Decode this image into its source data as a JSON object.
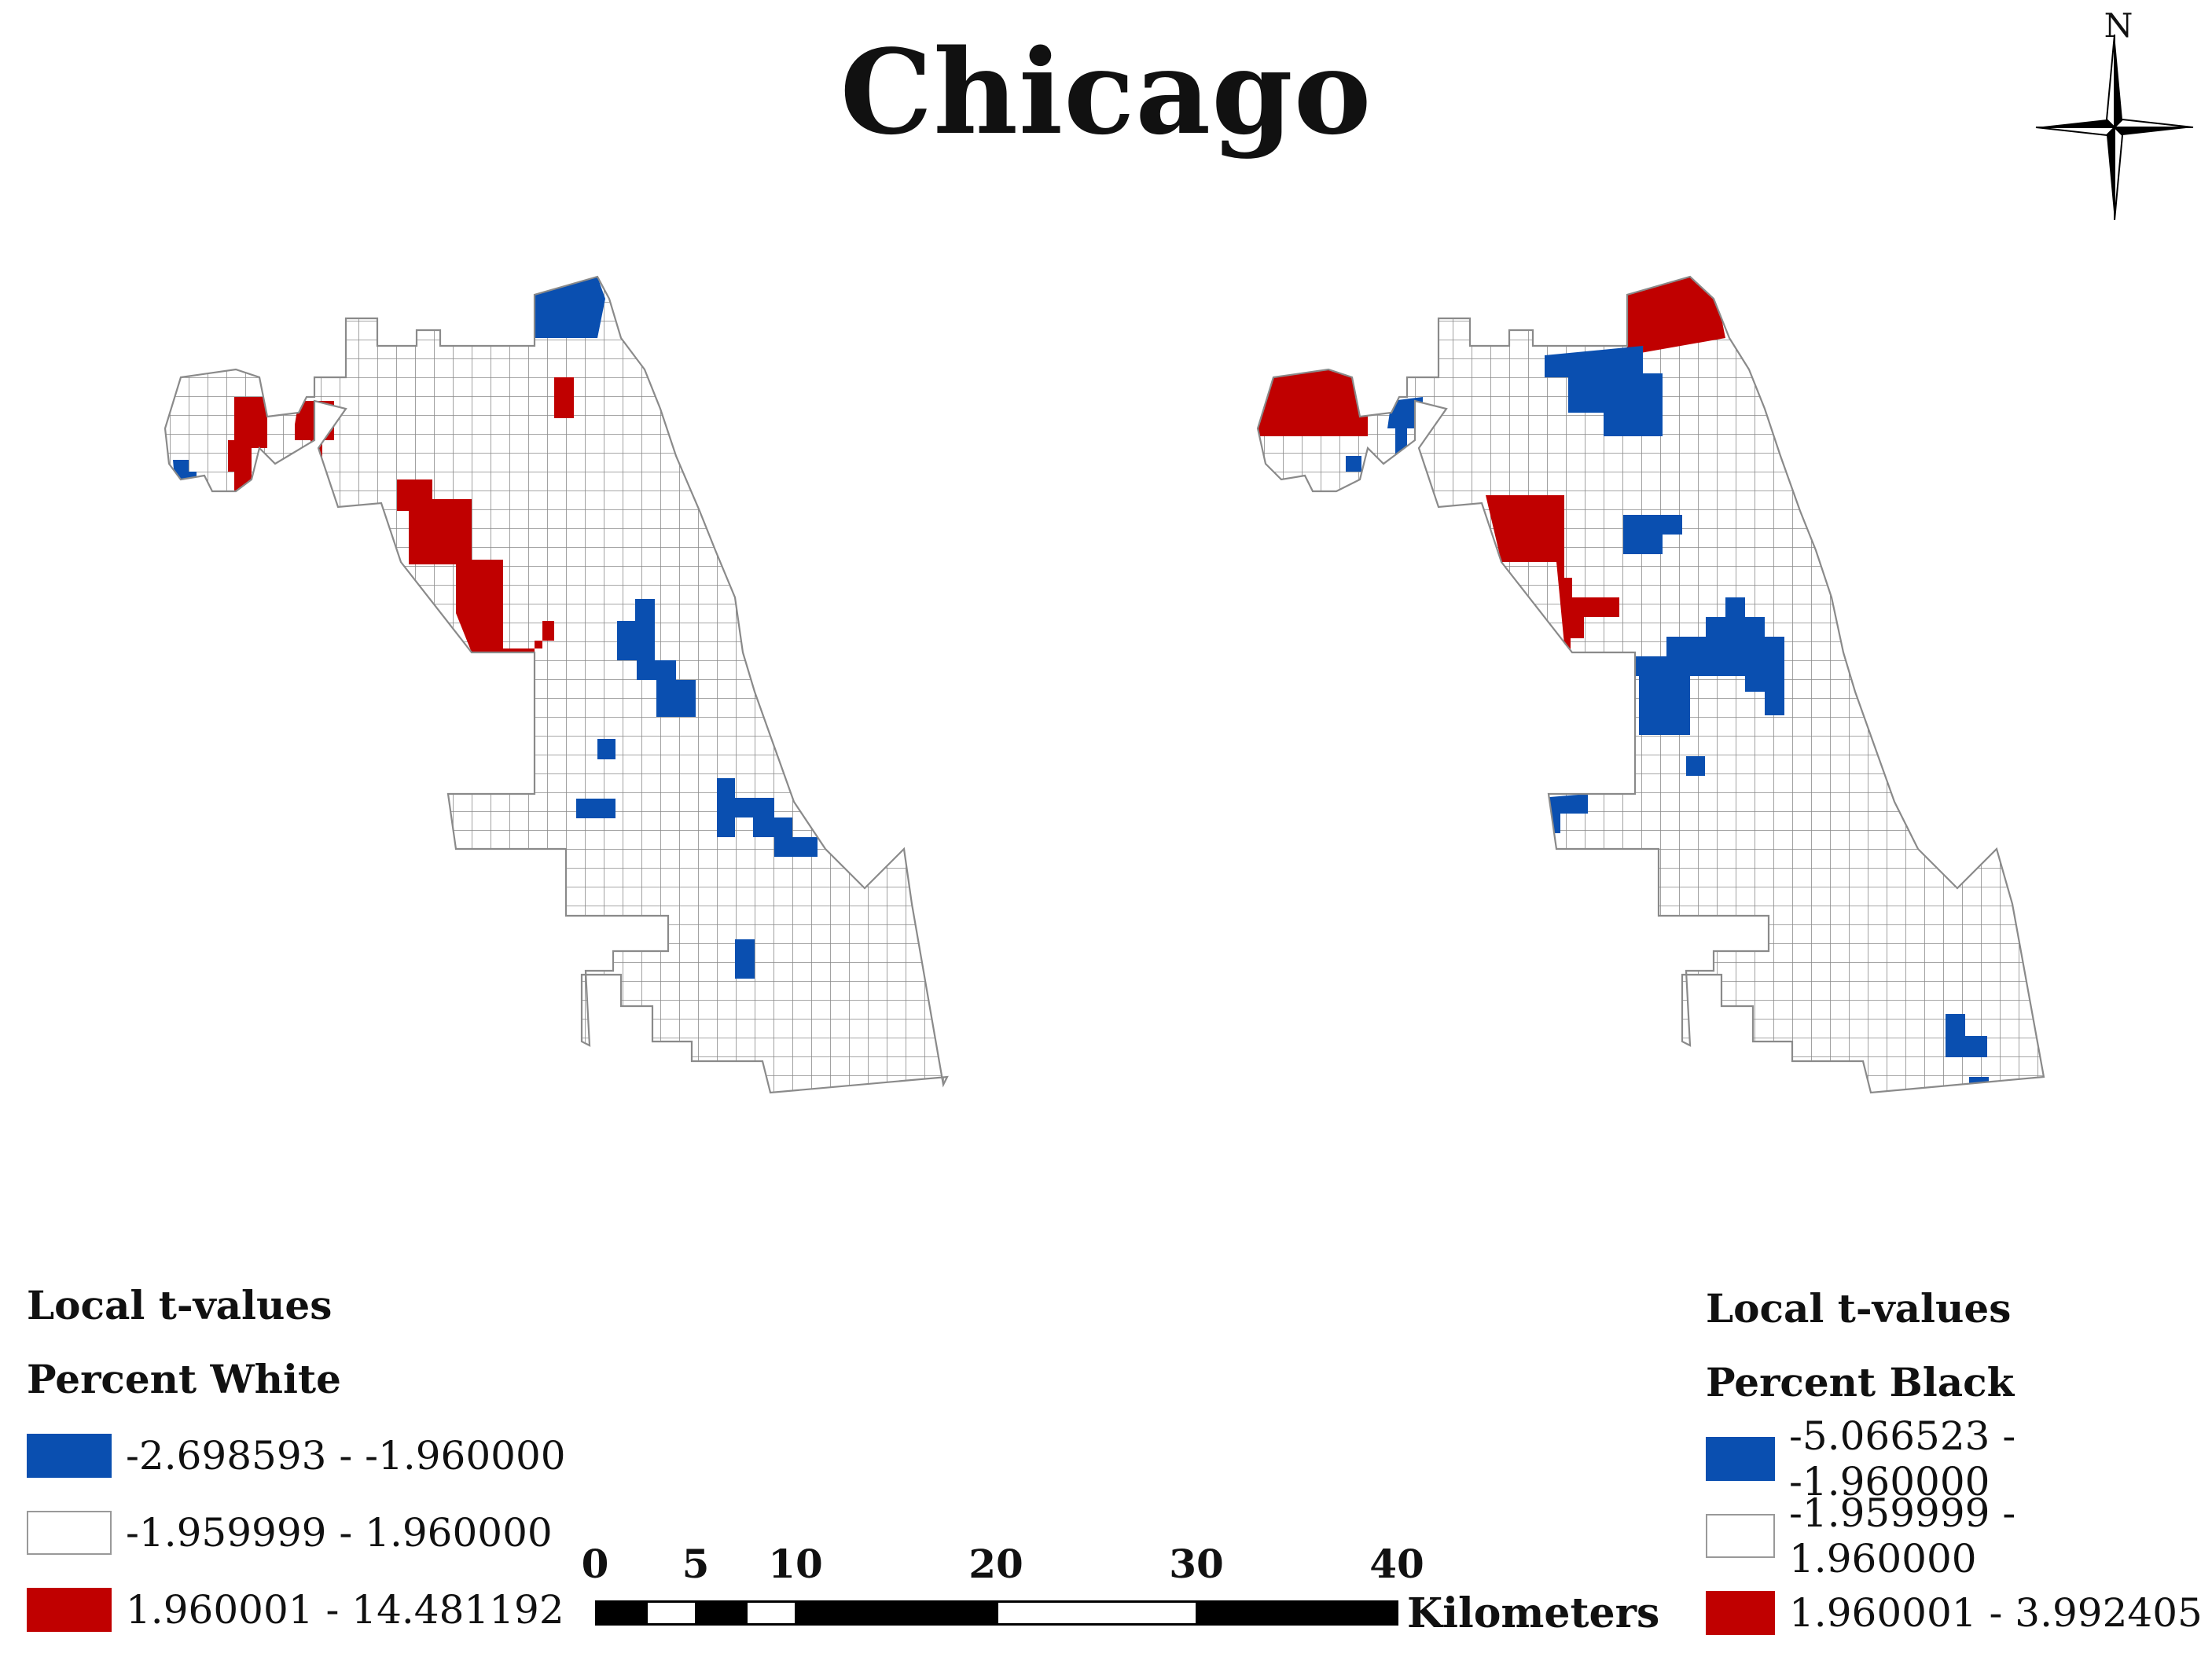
{
  "title": "Chicago",
  "north_arrow": {
    "label": "N"
  },
  "colors": {
    "negative": "#0a4fb0",
    "neutral": "#ffffff",
    "positive": "#c00000",
    "grid": "#8a8a8a"
  },
  "maps": [
    {
      "name": "percent-white",
      "legend": {
        "heading": "Local t-values",
        "variable": "Percent White",
        "classes": [
          {
            "label": "-2.698593 - -1.960000",
            "color": "#0a4fb0"
          },
          {
            "label": "-1.959999 - 1.960000",
            "color": "#ffffff"
          },
          {
            "label": "1.960001 - 14.481192",
            "color": "#c00000"
          }
        ]
      }
    },
    {
      "name": "percent-black",
      "legend": {
        "heading": "Local t-values",
        "variable": "Percent Black",
        "classes": [
          {
            "label": "-5.066523 - -1.960000",
            "color": "#0a4fb0"
          },
          {
            "label": "-1.959999 - 1.960000",
            "color": "#ffffff"
          },
          {
            "label": "1.960001 - 3.992405",
            "color": "#c00000"
          }
        ]
      }
    }
  ],
  "scale_bar": {
    "ticks": [
      "0",
      "5",
      "10",
      "20",
      "30",
      "40"
    ],
    "unit": "Kilometers"
  }
}
